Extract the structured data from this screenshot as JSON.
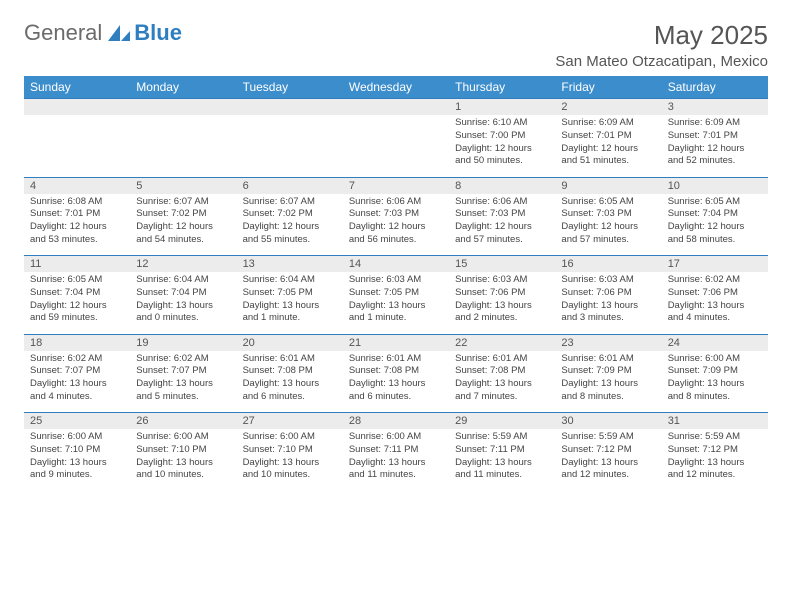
{
  "logo": {
    "text1": "General",
    "text2": "Blue"
  },
  "title": "May 2025",
  "location": "San Mateo Otzacatipan, Mexico",
  "day_headers": [
    "Sunday",
    "Monday",
    "Tuesday",
    "Wednesday",
    "Thursday",
    "Friday",
    "Saturday"
  ],
  "colors": {
    "header_bg": "#3c8dcc",
    "header_text": "#ffffff",
    "daynum_bg": "#ececec",
    "border": "#2f7fc0",
    "text": "#444444",
    "title_text": "#555555"
  },
  "fonts": {
    "family": "Arial",
    "month_title_size": 26,
    "location_size": 15,
    "header_size": 12,
    "daynum_size": 11,
    "detail_size": 9.5
  },
  "weeks": [
    [
      null,
      null,
      null,
      null,
      {
        "n": "1",
        "sr": "6:10 AM",
        "ss": "7:00 PM",
        "dl": "12 hours and 50 minutes."
      },
      {
        "n": "2",
        "sr": "6:09 AM",
        "ss": "7:01 PM",
        "dl": "12 hours and 51 minutes."
      },
      {
        "n": "3",
        "sr": "6:09 AM",
        "ss": "7:01 PM",
        "dl": "12 hours and 52 minutes."
      }
    ],
    [
      {
        "n": "4",
        "sr": "6:08 AM",
        "ss": "7:01 PM",
        "dl": "12 hours and 53 minutes."
      },
      {
        "n": "5",
        "sr": "6:07 AM",
        "ss": "7:02 PM",
        "dl": "12 hours and 54 minutes."
      },
      {
        "n": "6",
        "sr": "6:07 AM",
        "ss": "7:02 PM",
        "dl": "12 hours and 55 minutes."
      },
      {
        "n": "7",
        "sr": "6:06 AM",
        "ss": "7:03 PM",
        "dl": "12 hours and 56 minutes."
      },
      {
        "n": "8",
        "sr": "6:06 AM",
        "ss": "7:03 PM",
        "dl": "12 hours and 57 minutes."
      },
      {
        "n": "9",
        "sr": "6:05 AM",
        "ss": "7:03 PM",
        "dl": "12 hours and 57 minutes."
      },
      {
        "n": "10",
        "sr": "6:05 AM",
        "ss": "7:04 PM",
        "dl": "12 hours and 58 minutes."
      }
    ],
    [
      {
        "n": "11",
        "sr": "6:05 AM",
        "ss": "7:04 PM",
        "dl": "12 hours and 59 minutes."
      },
      {
        "n": "12",
        "sr": "6:04 AM",
        "ss": "7:04 PM",
        "dl": "13 hours and 0 minutes."
      },
      {
        "n": "13",
        "sr": "6:04 AM",
        "ss": "7:05 PM",
        "dl": "13 hours and 1 minute."
      },
      {
        "n": "14",
        "sr": "6:03 AM",
        "ss": "7:05 PM",
        "dl": "13 hours and 1 minute."
      },
      {
        "n": "15",
        "sr": "6:03 AM",
        "ss": "7:06 PM",
        "dl": "13 hours and 2 minutes."
      },
      {
        "n": "16",
        "sr": "6:03 AM",
        "ss": "7:06 PM",
        "dl": "13 hours and 3 minutes."
      },
      {
        "n": "17",
        "sr": "6:02 AM",
        "ss": "7:06 PM",
        "dl": "13 hours and 4 minutes."
      }
    ],
    [
      {
        "n": "18",
        "sr": "6:02 AM",
        "ss": "7:07 PM",
        "dl": "13 hours and 4 minutes."
      },
      {
        "n": "19",
        "sr": "6:02 AM",
        "ss": "7:07 PM",
        "dl": "13 hours and 5 minutes."
      },
      {
        "n": "20",
        "sr": "6:01 AM",
        "ss": "7:08 PM",
        "dl": "13 hours and 6 minutes."
      },
      {
        "n": "21",
        "sr": "6:01 AM",
        "ss": "7:08 PM",
        "dl": "13 hours and 6 minutes."
      },
      {
        "n": "22",
        "sr": "6:01 AM",
        "ss": "7:08 PM",
        "dl": "13 hours and 7 minutes."
      },
      {
        "n": "23",
        "sr": "6:01 AM",
        "ss": "7:09 PM",
        "dl": "13 hours and 8 minutes."
      },
      {
        "n": "24",
        "sr": "6:00 AM",
        "ss": "7:09 PM",
        "dl": "13 hours and 8 minutes."
      }
    ],
    [
      {
        "n": "25",
        "sr": "6:00 AM",
        "ss": "7:10 PM",
        "dl": "13 hours and 9 minutes."
      },
      {
        "n": "26",
        "sr": "6:00 AM",
        "ss": "7:10 PM",
        "dl": "13 hours and 10 minutes."
      },
      {
        "n": "27",
        "sr": "6:00 AM",
        "ss": "7:10 PM",
        "dl": "13 hours and 10 minutes."
      },
      {
        "n": "28",
        "sr": "6:00 AM",
        "ss": "7:11 PM",
        "dl": "13 hours and 11 minutes."
      },
      {
        "n": "29",
        "sr": "5:59 AM",
        "ss": "7:11 PM",
        "dl": "13 hours and 11 minutes."
      },
      {
        "n": "30",
        "sr": "5:59 AM",
        "ss": "7:12 PM",
        "dl": "13 hours and 12 minutes."
      },
      {
        "n": "31",
        "sr": "5:59 AM",
        "ss": "7:12 PM",
        "dl": "13 hours and 12 minutes."
      }
    ]
  ],
  "labels": {
    "sunrise": "Sunrise:",
    "sunset": "Sunset:",
    "daylight": "Daylight:"
  }
}
